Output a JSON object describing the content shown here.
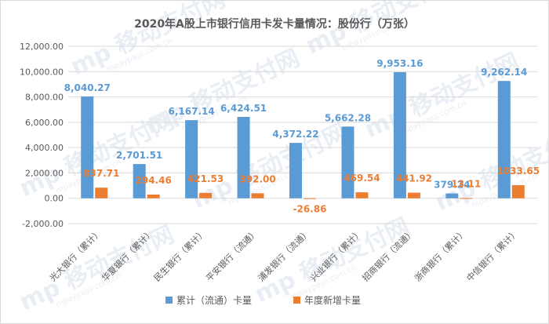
{
  "chart_data": {
    "type": "bar",
    "title": "2020年A股上市银行信用卡发卡量情况：股份行（万张）",
    "categories": [
      "光大银行（累计）",
      "华夏银行（累计）",
      "民生银行（累计）",
      "平安银行（流通）",
      "浦发银行（流通）",
      "兴业银行（累计）",
      "招商银行（流通）",
      "浙商银行（累计）",
      "中信银行（累计）"
    ],
    "series": [
      {
        "name": "累计（流通）卡量",
        "color": "#5b9bd5",
        "values": [
          8040.27,
          2701.51,
          6167.14,
          6424.51,
          4372.22,
          5662.28,
          9953.16,
          379.24,
          9262.14
        ],
        "labels": [
          "8,040.27",
          "2,701.51",
          "6,167.14",
          "6,424.51",
          "4,372.22",
          "5,662.28",
          "9,953.16",
          "379.24",
          "9,262.14"
        ]
      },
      {
        "name": "年度新增卡量",
        "color": "#ed7d31",
        "values": [
          837.71,
          294.46,
          421.53,
          392.0,
          -26.86,
          469.54,
          441.92,
          13.11,
          1033.65
        ],
        "labels": [
          "837.71",
          "294.46",
          "421.53",
          "392.00",
          "-26.86",
          "469.54",
          "441.92",
          "13.11",
          "1033.65"
        ]
      }
    ],
    "ylim": [
      -2000,
      12000
    ],
    "yticks": [
      12000,
      10000,
      8000,
      6000,
      4000,
      2000,
      0,
      -2000
    ],
    "ytick_labels": [
      "12,000.00",
      "10,000.00",
      "8,000.00",
      "6,000.00",
      "4,000.00",
      "2,000.00",
      "0.00",
      "-2,000.00"
    ],
    "grid": true,
    "legend": "bottom"
  },
  "watermark": {
    "brand": "移动支付网",
    "domain": "mpaypass.com.cn"
  }
}
